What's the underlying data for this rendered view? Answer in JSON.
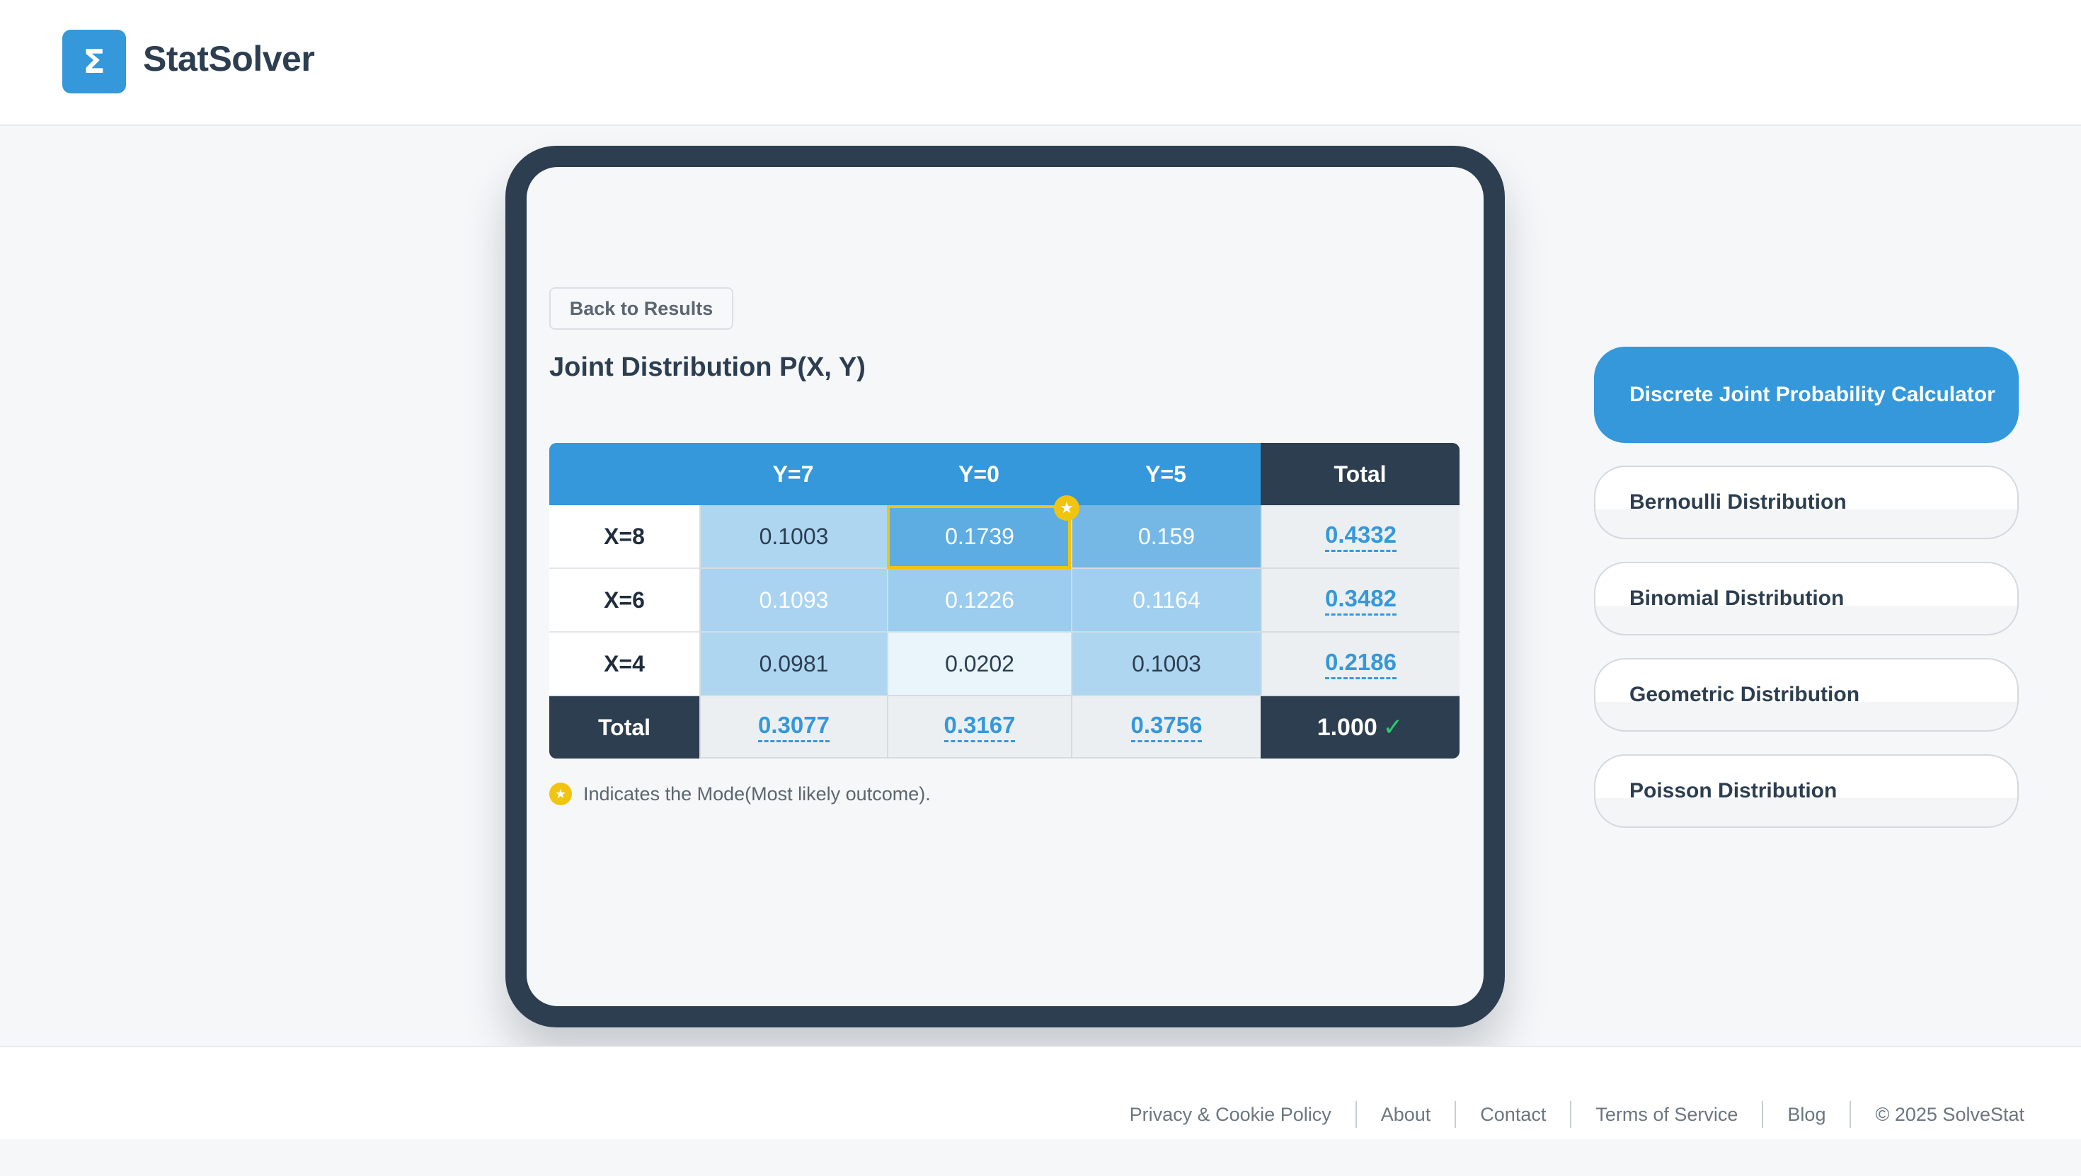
{
  "header": {
    "logo_glyph": "Σ",
    "brand": "StatSolver"
  },
  "panel": {
    "back_label": "Back to Results",
    "title": "Joint Distribution P(X, Y)",
    "table": {
      "corner": "",
      "columns": [
        "Y=7",
        "Y=0",
        "Y=5"
      ],
      "total_header": "Total",
      "rows": [
        {
          "label": "X=8",
          "values": [
            "0.1003",
            "0.1739",
            "0.159"
          ],
          "total": "0.4332"
        },
        {
          "label": "X=6",
          "values": [
            "0.1093",
            "0.1226",
            "0.1164"
          ],
          "total": "0.3482"
        },
        {
          "label": "X=4",
          "values": [
            "0.0981",
            "0.0202",
            "0.1003"
          ],
          "total": "0.2186"
        }
      ],
      "footer_label": "Total",
      "column_totals": [
        "0.3077",
        "0.3167",
        "0.3756"
      ],
      "grand_total": "1.000",
      "grand_check": "✓",
      "mode_star": "★"
    },
    "legend_text": "Indicates the Mode(Most likely outcome).",
    "legend_star": "★"
  },
  "sidebar": {
    "items": [
      {
        "label": "Discrete Joint Probability Calculator",
        "active": true
      },
      {
        "label": "Bernoulli Distribution",
        "active": false
      },
      {
        "label": "Binomial Distribution",
        "active": false
      },
      {
        "label": "Geometric Distribution",
        "active": false
      },
      {
        "label": "Poisson Distribution",
        "active": false
      }
    ]
  },
  "footer": {
    "links": [
      "Privacy & Cookie Policy",
      "About",
      "Contact",
      "Terms of Service",
      "Blog"
    ],
    "copyright": "© 2025 SolveStat"
  },
  "colors": {
    "accent": "#3498db",
    "dark": "#2c3e50",
    "mode_highlight": "#f1c40f",
    "check_green": "#2ecc71",
    "heat_high": "#5dade2",
    "heat_mid": "#85c1e9",
    "heat_low": "#aed6f1",
    "heat_min": "#eaf4fb"
  }
}
